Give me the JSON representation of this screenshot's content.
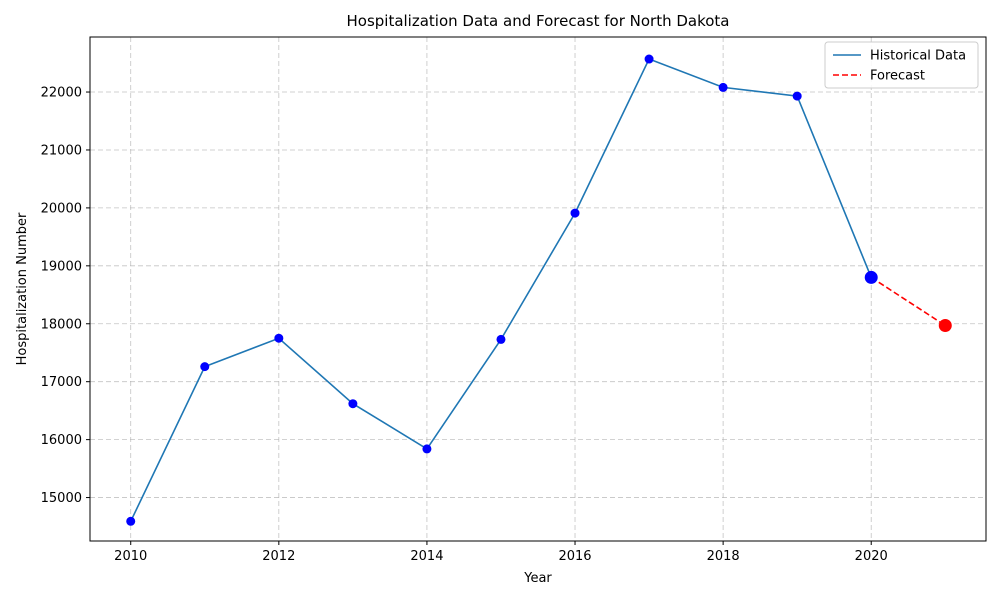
{
  "chart_data": {
    "type": "line",
    "title": "Hospitalization Data and Forecast for North Dakota",
    "xlabel": "Year",
    "ylabel": "Hospitalization Number",
    "xlim": [
      2009.45,
      2021.55
    ],
    "ylim": [
      14250,
      22950
    ],
    "xticks": [
      2010,
      2012,
      2014,
      2016,
      2018,
      2020
    ],
    "yticks": [
      15000,
      16000,
      17000,
      18000,
      19000,
      20000,
      21000,
      22000
    ],
    "grid": true,
    "legend_position": "top-right",
    "series": [
      {
        "name": "Historical Data",
        "color": "#1f77b4",
        "marker_color": "#0000ff",
        "style": "solid",
        "x": [
          2010,
          2011,
          2012,
          2013,
          2014,
          2015,
          2016,
          2017,
          2018,
          2019,
          2020
        ],
        "y": [
          14590,
          17260,
          17750,
          16620,
          15840,
          17730,
          19910,
          22570,
          22080,
          21930,
          18800
        ]
      },
      {
        "name": "Forecast",
        "color": "#ff0000",
        "marker_color": "#ff0000",
        "style": "dashed",
        "x": [
          2020,
          2021
        ],
        "y": [
          18800,
          17970
        ]
      }
    ],
    "highlight_points": [
      {
        "x": 2020,
        "y": 18800,
        "color": "#0000ff"
      },
      {
        "x": 2021,
        "y": 17970,
        "color": "#ff0000"
      }
    ]
  }
}
